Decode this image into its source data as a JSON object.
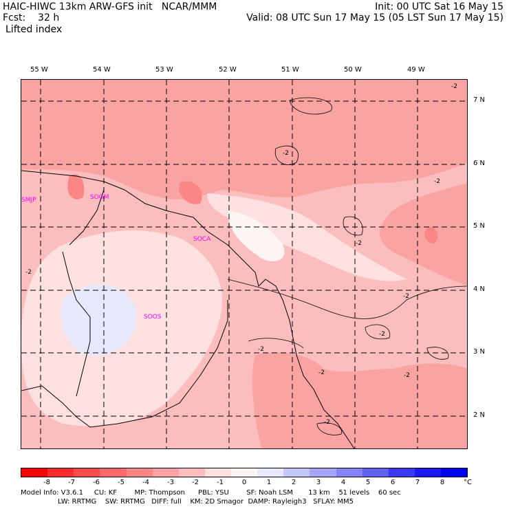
{
  "header": {
    "line1_left": "HAIC-HIWC 13km ARW-GFS init   NCAR/MMM",
    "line1_right": "Init: 00 UTC Sat 16 May 15",
    "line2_left": "Fcst:    32 h",
    "line2_right": "Valid: 08 UTC Sun 17 May 15 (05 LST Sun 17 May 15)",
    "field_name": "Lifted index"
  },
  "map": {
    "lon_labels": [
      "55 W",
      "54 W",
      "53 W",
      "52 W",
      "51 W",
      "50 W",
      "49 W"
    ],
    "lat_labels": [
      "7 N",
      "6 N",
      "5 N",
      "4 N",
      "3 N",
      "2 N"
    ],
    "stations": [
      "SMJP",
      "SOGM",
      "SOCA",
      "SOOS"
    ],
    "contour_labels": [
      "-2",
      "-2",
      "-2",
      "-2",
      "-2",
      "-2",
      "-2",
      "-2",
      "-2",
      "-2",
      "-2"
    ],
    "colors": {
      "neg8": "#ff0000",
      "neg7": "#ff2a2a",
      "neg6": "#ff4a4a",
      "neg5": "#ff6a6a",
      "neg4": "#fb8686",
      "neg3": "#f9a3a3",
      "neg2": "#fbbdbd",
      "neg1": "#fde1e1",
      "zero": "#fdf4f4",
      "pos1": "#e7e7fd",
      "pos2": "#c6c6fb",
      "pos3": "#a5a5f9",
      "pos4": "#8484f7",
      "pos5": "#6161f5",
      "pos6": "#3a3af5",
      "pos7": "#1a1af5",
      "pos8": "#0000f0",
      "station_label": "#ff00ff"
    }
  },
  "colorbar": {
    "ticks": [
      "-8",
      "-7",
      "-6",
      "-5",
      "-4",
      "-3",
      "-2",
      "-1",
      "0",
      "1",
      "2",
      "3",
      "4",
      "5",
      "6",
      "7",
      "8"
    ],
    "unit": "°C"
  },
  "footer": {
    "line1": "Model Info: V3.6.1     CU: KF        MP: Thompson      PBL: YSU        SF: Noah LSM       13 km    51 levels    60 sec",
    "line2": "                 LW: RRTMG    SW: RRTMG   DIFF: full    KM: 2D Smagor  DAMP: Rayleigh3   SFLAY: MM5"
  }
}
